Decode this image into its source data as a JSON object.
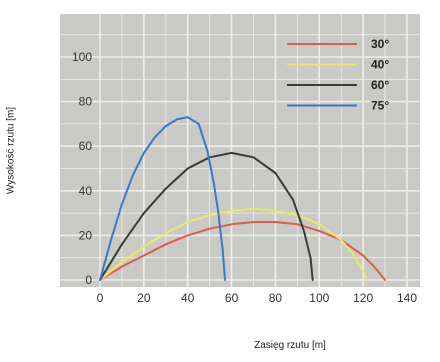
{
  "chart_data": {
    "type": "line",
    "xlabel": "Zasięg rzutu [m]",
    "ylabel": "Wysokość rzutu [m]",
    "xlim": [
      0,
      140
    ],
    "ylim": [
      0,
      120
    ],
    "x_ticks": [
      "0",
      "20",
      "40",
      "60",
      "80",
      "100",
      "120",
      "140"
    ],
    "y_ticks": [
      "0",
      "20",
      "40",
      "60",
      "80",
      "100"
    ],
    "grid": true,
    "legend_position": "top-right",
    "background_color": "#c9c9c6",
    "grid_color": "#eeeeec",
    "series": [
      {
        "name": "30°",
        "color": "#d9604a",
        "points": [
          [
            0,
            0
          ],
          [
            10,
            6
          ],
          [
            20,
            11
          ],
          [
            30,
            16
          ],
          [
            40,
            20
          ],
          [
            50,
            23
          ],
          [
            60,
            25
          ],
          [
            70,
            26
          ],
          [
            80,
            26
          ],
          [
            90,
            25
          ],
          [
            100,
            22
          ],
          [
            110,
            18
          ],
          [
            120,
            11
          ],
          [
            125,
            6
          ],
          [
            130,
            0
          ]
        ]
      },
      {
        "name": "40°",
        "color": "#e9e86a",
        "points": [
          [
            0,
            0
          ],
          [
            10,
            8
          ],
          [
            20,
            15
          ],
          [
            30,
            21
          ],
          [
            40,
            26
          ],
          [
            50,
            29
          ],
          [
            60,
            31
          ],
          [
            70,
            32
          ],
          [
            80,
            31
          ],
          [
            90,
            29
          ],
          [
            100,
            25
          ],
          [
            110,
            18
          ],
          [
            115,
            12
          ],
          [
            120,
            4
          ],
          [
            122,
            0
          ]
        ]
      },
      {
        "name": "60°",
        "color": "#3b3b38",
        "points": [
          [
            0,
            0
          ],
          [
            10,
            16
          ],
          [
            20,
            30
          ],
          [
            30,
            41
          ],
          [
            40,
            50
          ],
          [
            50,
            55
          ],
          [
            60,
            57
          ],
          [
            70,
            55
          ],
          [
            80,
            48
          ],
          [
            88,
            36
          ],
          [
            93,
            22
          ],
          [
            96,
            10
          ],
          [
            97,
            0
          ]
        ]
      },
      {
        "name": "75°",
        "color": "#3a78c8",
        "points": [
          [
            0,
            0
          ],
          [
            5,
            18
          ],
          [
            10,
            34
          ],
          [
            15,
            47
          ],
          [
            20,
            57
          ],
          [
            25,
            64
          ],
          [
            30,
            69
          ],
          [
            35,
            72
          ],
          [
            40,
            73
          ],
          [
            45,
            70
          ],
          [
            49,
            58
          ],
          [
            52,
            43
          ],
          [
            54,
            30
          ],
          [
            56,
            13
          ],
          [
            57,
            0
          ]
        ]
      }
    ]
  }
}
